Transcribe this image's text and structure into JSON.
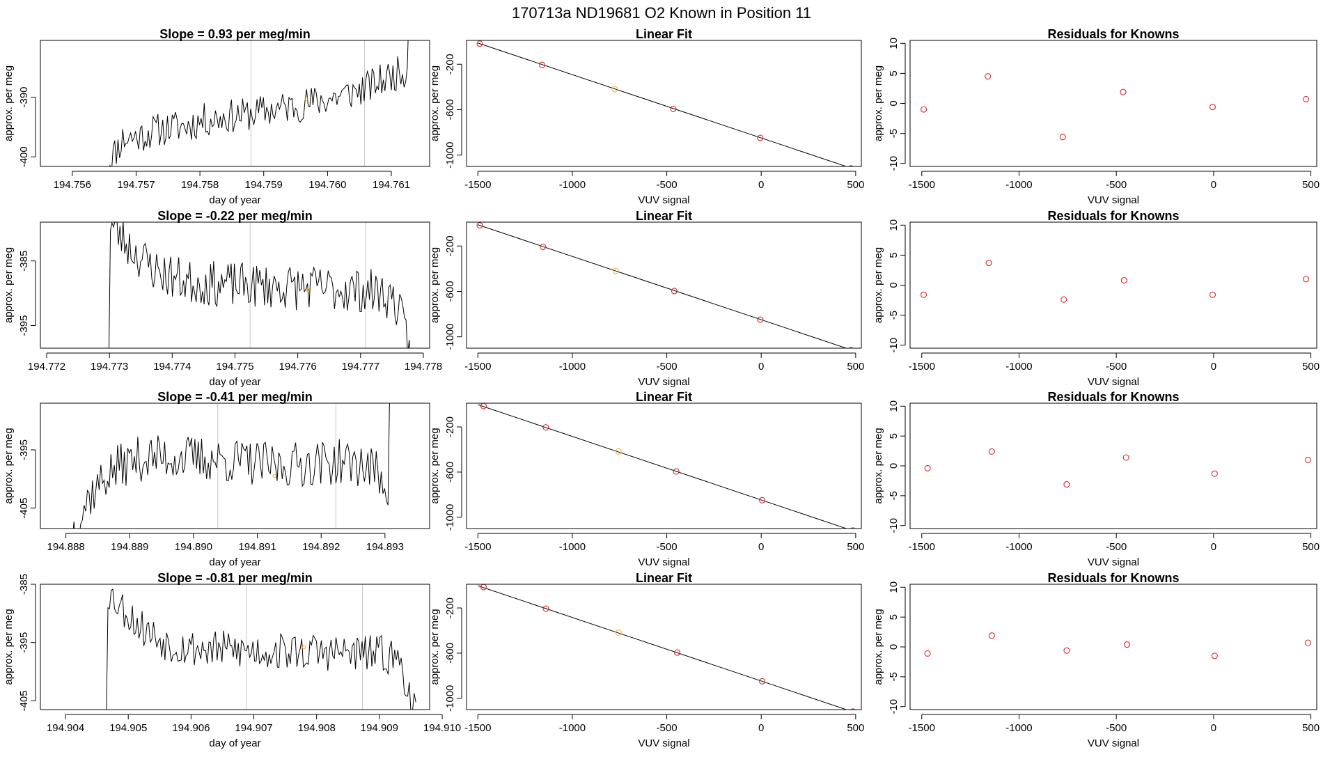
{
  "page_title": "170713a      ND19681    O2 Known in Position  11",
  "chart_data": [
    {
      "type": "line",
      "row": 0,
      "col": 0,
      "title": "Slope =  0.93  per meg/min",
      "xlabel": "day of year",
      "ylabel": "approx. per meg",
      "xlim": [
        194.7555,
        194.7616
      ],
      "ylim": [
        -401.6,
        -380.5
      ],
      "x_ticks": [
        194.756,
        194.757,
        194.758,
        194.759,
        194.76,
        194.761
      ],
      "x_tick_labels": [
        "194.756",
        "194.757",
        "194.758",
        "194.759",
        "194.760",
        "194.761"
      ],
      "y_ticks": [
        -400,
        -390
      ],
      "y_tick_labels": [
        "-400",
        "-390"
      ],
      "vlines": [
        194.7588,
        194.76058
      ],
      "highlight_point": {
        "x": 194.75967,
        "y": -390.3,
        "color": "#f5b041"
      },
      "trace": {
        "x0": 194.75654,
        "x1": 194.7613,
        "base": [
          -401.5,
          -397,
          -396.6,
          -395.6,
          -395.1,
          -394.8,
          -393.9,
          -393.5,
          -393.1,
          -392.8,
          -392.3,
          -391.8,
          -391.4,
          -390.8,
          -390.2,
          -389.5,
          -388.7,
          -387.5,
          -386.2,
          -385.2
        ],
        "amp": 1.3,
        "seed": 11,
        "end_rise": -376
      }
    },
    {
      "type": "line",
      "row": 1,
      "col": 0,
      "title": "Slope =  -0.22  per meg/min",
      "xlabel": "day of year",
      "ylabel": "approx. per meg",
      "xlim": [
        194.7719,
        194.7781
      ],
      "ylim": [
        -398.5,
        -379.0
      ],
      "x_ticks": [
        194.772,
        194.773,
        194.774,
        194.775,
        194.776,
        194.777,
        194.778
      ],
      "x_tick_labels": [
        "194.772",
        "194.773",
        "194.774",
        "194.775",
        "194.776",
        "194.777",
        "194.778"
      ],
      "y_ticks": [
        -395,
        -385
      ],
      "y_tick_labels": [
        "-395",
        "-385"
      ],
      "vlines": [
        194.77524,
        194.77708
      ],
      "highlight_point": {
        "x": 194.77616,
        "y": -389.5,
        "color": "#f5b041"
      },
      "trace": {
        "x0": 194.77299,
        "x1": 194.7778,
        "base": [
          -379,
          -382,
          -384.5,
          -386.5,
          -387.5,
          -388.2,
          -388.5,
          -388.6,
          -388.7,
          -388.8,
          -388.9,
          -389.0,
          -389.1,
          -389.2,
          -389.3,
          -389.4,
          -389.6,
          -389.9,
          -391,
          -399
        ],
        "amp": 1.6,
        "seed": 23,
        "end_rise": null
      }
    },
    {
      "type": "line",
      "row": 2,
      "col": 0,
      "title": "Slope =  -0.41  per meg/min",
      "xlabel": "day of year",
      "ylabel": "approx. per meg",
      "xlim": [
        194.8876,
        194.8937
      ],
      "ylim": [
        -408.5,
        -387.0
      ],
      "x_ticks": [
        194.888,
        194.889,
        194.89,
        194.891,
        194.892,
        194.893
      ],
      "x_tick_labels": [
        "194.888",
        "194.889",
        "194.890",
        "194.891",
        "194.892",
        "194.893"
      ],
      "y_ticks": [
        -405,
        -395
      ],
      "y_tick_labels": [
        "-405",
        "-395"
      ],
      "vlines": [
        194.89038,
        194.89223
      ],
      "highlight_point": {
        "x": 194.89127,
        "y": -399.5,
        "color": "#f5b041"
      },
      "trace": {
        "x0": 194.8881,
        "x1": 194.8931,
        "base": [
          -409,
          -403,
          -399.5,
          -397.5,
          -396.5,
          -396.3,
          -396.2,
          -396.4,
          -396.6,
          -396.8,
          -397.0,
          -397.4,
          -397.8,
          -397.6,
          -397.3,
          -397.2,
          -397.1,
          -397.4,
          -398.5,
          -402
        ],
        "amp": 1.8,
        "seed": 37,
        "end_rise": -385
      }
    },
    {
      "type": "line",
      "row": 3,
      "col": 0,
      "title": "Slope =  -0.81  per meg/min",
      "xlabel": "day of year",
      "ylabel": "approx. per meg",
      "xlim": [
        194.9036,
        194.9098
      ],
      "ylim": [
        -406.5,
        -385.0
      ],
      "x_ticks": [
        194.904,
        194.905,
        194.906,
        194.907,
        194.908,
        194.909,
        194.91
      ],
      "x_tick_labels": [
        "194.904",
        "194.905",
        "194.906",
        "194.907",
        "194.908",
        "194.909",
        "194.910"
      ],
      "y_ticks": [
        -405,
        -395,
        -385
      ],
      "y_tick_labels": [
        "-405",
        "-395",
        "-385"
      ],
      "vlines": [
        194.90688,
        194.90873
      ],
      "highlight_point": {
        "x": 194.9078,
        "y": -395.8,
        "color": "#f5b041"
      },
      "trace": {
        "x0": 194.90465,
        "x1": 194.90958,
        "base": [
          -386,
          -389,
          -392,
          -394,
          -395.3,
          -395.8,
          -396.1,
          -396.2,
          -396.3,
          -396.4,
          -396.5,
          -396.5,
          -396.6,
          -396.6,
          -396.7,
          -396.8,
          -396.9,
          -397.0,
          -398,
          -407
        ],
        "amp": 1.5,
        "seed": 53,
        "end_rise": null
      }
    },
    {
      "type": "scatter",
      "row": 0,
      "col": 1,
      "title": "Linear Fit",
      "xlabel": "VUV signal",
      "ylabel": "approx. per meg",
      "xlim": [
        -1560,
        530
      ],
      "ylim": [
        -1100,
        10
      ],
      "x_ticks": [
        -1500,
        -1000,
        -500,
        0,
        500
      ],
      "x_tick_labels": [
        "-1500",
        "-1000",
        "-500",
        "0",
        "500"
      ],
      "y_ticks": [
        -1000,
        -600,
        -200
      ],
      "y_tick_labels": [
        "-1000",
        "-600",
        "-200"
      ],
      "points": [
        {
          "x": -1490,
          "y": -19,
          "color": "#d62728"
        },
        {
          "x": -1160,
          "y": -206,
          "color": "#d62728"
        },
        {
          "x": -775,
          "y": -420,
          "color": "#f5b041"
        },
        {
          "x": -465,
          "y": -593,
          "color": "#d62728"
        },
        {
          "x": -5,
          "y": -849,
          "color": "#d62728"
        },
        {
          "x": 475,
          "y": -1117,
          "color": "#d62728"
        }
      ],
      "fit_line": {
        "x": [
          -1500,
          500
        ],
        "y": [
          -13,
          -1128
        ]
      }
    },
    {
      "type": "scatter",
      "row": 1,
      "col": 1,
      "title": "Linear Fit",
      "xlabel": "VUV signal",
      "ylabel": "approx. per meg",
      "xlim": [
        -1560,
        530
      ],
      "ylim": [
        -1100,
        10
      ],
      "x_ticks": [
        -1500,
        -1000,
        -500,
        0,
        500
      ],
      "x_tick_labels": [
        "-1500",
        "-1000",
        "-500",
        "0",
        "500"
      ],
      "y_ticks": [
        -1000,
        -600,
        -200
      ],
      "y_tick_labels": [
        "-1000",
        "-600",
        "-200"
      ],
      "points": [
        {
          "x": -1490,
          "y": -19,
          "color": "#d62728"
        },
        {
          "x": -1155,
          "y": -208,
          "color": "#d62728"
        },
        {
          "x": -770,
          "y": -420,
          "color": "#f5b041"
        },
        {
          "x": -460,
          "y": -597,
          "color": "#d62728"
        },
        {
          "x": -5,
          "y": -849,
          "color": "#d62728"
        },
        {
          "x": 475,
          "y": -1117,
          "color": "#d62728"
        }
      ],
      "fit_line": {
        "x": [
          -1500,
          500
        ],
        "y": [
          -13,
          -1128
        ]
      }
    },
    {
      "type": "scatter",
      "row": 2,
      "col": 1,
      "title": "Linear Fit",
      "xlabel": "VUV signal",
      "ylabel": "approx. per meg",
      "xlim": [
        -1560,
        530
      ],
      "ylim": [
        -1100,
        10
      ],
      "x_ticks": [
        -1500,
        -1000,
        -500,
        0,
        500
      ],
      "x_tick_labels": [
        "-1500",
        "-1000",
        "-500",
        "0",
        "500"
      ],
      "y_ticks": [
        -1000,
        -600,
        -200
      ],
      "y_tick_labels": [
        "-1000",
        "-600",
        "-200"
      ],
      "points": [
        {
          "x": -1470,
          "y": -15,
          "color": "#d62728"
        },
        {
          "x": -1140,
          "y": -204,
          "color": "#d62728"
        },
        {
          "x": -755,
          "y": -418,
          "color": "#f5b041"
        },
        {
          "x": -450,
          "y": -594,
          "color": "#d62728"
        },
        {
          "x": 5,
          "y": -849,
          "color": "#d62728"
        },
        {
          "x": 485,
          "y": -1117,
          "color": "#d62728"
        }
      ],
      "fit_line": {
        "x": [
          -1500,
          500
        ],
        "y": [
          -3,
          -1128
        ]
      }
    },
    {
      "type": "scatter",
      "row": 3,
      "col": 1,
      "title": "Linear Fit",
      "xlabel": "VUV signal",
      "ylabel": "approx. per meg",
      "xlim": [
        -1560,
        530
      ],
      "ylim": [
        -1100,
        10
      ],
      "x_ticks": [
        -1500,
        -1000,
        -500,
        0,
        500
      ],
      "x_tick_labels": [
        "-1500",
        "-1000",
        "-500",
        "0",
        "500"
      ],
      "y_ticks": [
        -1000,
        -600,
        -200
      ],
      "y_tick_labels": [
        "-1000",
        "-600",
        "-200"
      ],
      "points": [
        {
          "x": -1470,
          "y": -15,
          "color": "#d62728"
        },
        {
          "x": -1140,
          "y": -206,
          "color": "#d62728"
        },
        {
          "x": -755,
          "y": -418,
          "color": "#f5b041"
        },
        {
          "x": -445,
          "y": -595,
          "color": "#d62728"
        },
        {
          "x": 5,
          "y": -849,
          "color": "#d62728"
        },
        {
          "x": 485,
          "y": -1117,
          "color": "#d62728"
        }
      ],
      "fit_line": {
        "x": [
          -1500,
          500
        ],
        "y": [
          -3,
          -1128
        ]
      }
    },
    {
      "type": "scatter",
      "row": 0,
      "col": 2,
      "title": "Residuals for Knowns",
      "xlabel": "VUV signal",
      "ylabel": "approx. per meg",
      "xlim": [
        -1560,
        530
      ],
      "ylim": [
        -10.5,
        10.5
      ],
      "x_ticks": [
        -1500,
        -1000,
        -500,
        0,
        500
      ],
      "x_tick_labels": [
        "-1500",
        "-1000",
        "-500",
        "0",
        "500"
      ],
      "y_ticks": [
        -10,
        -5,
        0,
        5,
        10
      ],
      "y_tick_labels": [
        "-10",
        "-5",
        "0",
        "5",
        "10"
      ],
      "points": [
        {
          "x": -1490,
          "y": -1.0,
          "color": "#d62728"
        },
        {
          "x": -1160,
          "y": 4.5,
          "color": "#d62728"
        },
        {
          "x": -775,
          "y": -5.6,
          "color": "#d62728"
        },
        {
          "x": -465,
          "y": 1.9,
          "color": "#d62728"
        },
        {
          "x": -5,
          "y": -0.6,
          "color": "#d62728"
        },
        {
          "x": 475,
          "y": 0.7,
          "color": "#d62728"
        }
      ]
    },
    {
      "type": "scatter",
      "row": 1,
      "col": 2,
      "title": "Residuals for Knowns",
      "xlabel": "VUV signal",
      "ylabel": "approx. per meg",
      "xlim": [
        -1560,
        530
      ],
      "ylim": [
        -10.5,
        10.5
      ],
      "x_ticks": [
        -1500,
        -1000,
        -500,
        0,
        500
      ],
      "x_tick_labels": [
        "-1500",
        "-1000",
        "-500",
        "0",
        "500"
      ],
      "y_ticks": [
        -10,
        -5,
        0,
        5,
        10
      ],
      "y_tick_labels": [
        "-10",
        "-5",
        "0",
        "5",
        "10"
      ],
      "points": [
        {
          "x": -1490,
          "y": -1.6,
          "color": "#d62728"
        },
        {
          "x": -1155,
          "y": 3.7,
          "color": "#d62728"
        },
        {
          "x": -770,
          "y": -2.4,
          "color": "#d62728"
        },
        {
          "x": -460,
          "y": 0.8,
          "color": "#d62728"
        },
        {
          "x": -5,
          "y": -1.6,
          "color": "#d62728"
        },
        {
          "x": 475,
          "y": 1.0,
          "color": "#d62728"
        }
      ]
    },
    {
      "type": "scatter",
      "row": 2,
      "col": 2,
      "title": "Residuals for Knowns",
      "xlabel": "VUV signal",
      "ylabel": "approx. per meg",
      "xlim": [
        -1560,
        530
      ],
      "ylim": [
        -10.5,
        10.5
      ],
      "x_ticks": [
        -1500,
        -1000,
        -500,
        0,
        500
      ],
      "x_tick_labels": [
        "-1500",
        "-1000",
        "-500",
        "0",
        "500"
      ],
      "y_ticks": [
        -10,
        -5,
        0,
        5,
        10
      ],
      "y_tick_labels": [
        "-10",
        "-5",
        "0",
        "5",
        "10"
      ],
      "points": [
        {
          "x": -1470,
          "y": -0.4,
          "color": "#d62728"
        },
        {
          "x": -1140,
          "y": 2.4,
          "color": "#d62728"
        },
        {
          "x": -755,
          "y": -3.1,
          "color": "#d62728"
        },
        {
          "x": -450,
          "y": 1.4,
          "color": "#d62728"
        },
        {
          "x": 5,
          "y": -1.3,
          "color": "#d62728"
        },
        {
          "x": 485,
          "y": 1.0,
          "color": "#d62728"
        }
      ]
    },
    {
      "type": "scatter",
      "row": 3,
      "col": 2,
      "title": "Residuals for Knowns",
      "xlabel": "VUV signal",
      "ylabel": "approx. per meg",
      "xlim": [
        -1560,
        530
      ],
      "ylim": [
        -10.5,
        10.5
      ],
      "x_ticks": [
        -1500,
        -1000,
        -500,
        0,
        500
      ],
      "x_tick_labels": [
        "-1500",
        "-1000",
        "-500",
        "0",
        "500"
      ],
      "y_ticks": [
        -10,
        -5,
        0,
        5,
        10
      ],
      "y_tick_labels": [
        "-10",
        "-5",
        "0",
        "5",
        "10"
      ],
      "points": [
        {
          "x": -1470,
          "y": -1.1,
          "color": "#d62728"
        },
        {
          "x": -1140,
          "y": 1.9,
          "color": "#d62728"
        },
        {
          "x": -755,
          "y": -0.6,
          "color": "#d62728"
        },
        {
          "x": -445,
          "y": 0.4,
          "color": "#d62728"
        },
        {
          "x": 5,
          "y": -1.5,
          "color": "#d62728"
        },
        {
          "x": 485,
          "y": 0.7,
          "color": "#d62728"
        }
      ]
    }
  ],
  "colors": {
    "line": "#000000",
    "vline": "#c8c8c8",
    "point_default": "#d62728",
    "point_highlight": "#f5b041"
  }
}
